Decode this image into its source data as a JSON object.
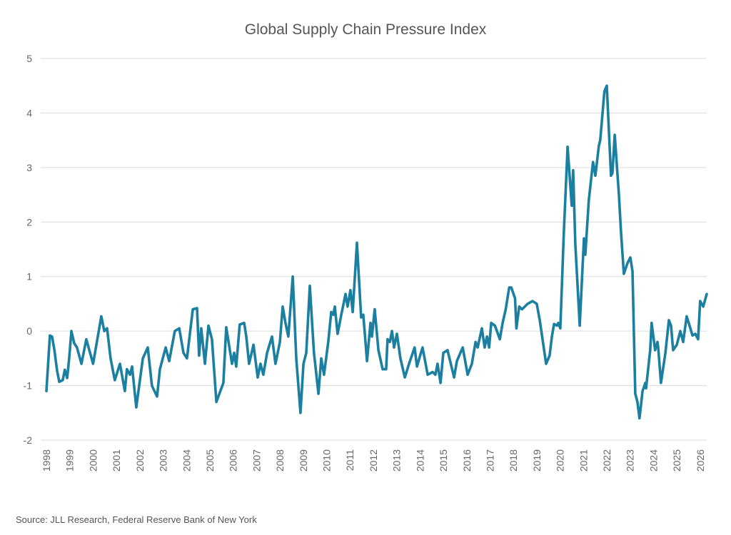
{
  "chart_data": {
    "type": "line",
    "title": "Global Supply Chain Pressure Index",
    "source": "Source: JLL Research, Federal Reserve Bank of New York",
    "xlabel": "",
    "ylabel": "",
    "xlim": [
      1998,
      2026.28
    ],
    "ylim": [
      -2,
      5
    ],
    "y_ticks": [
      "-2",
      "-1",
      "0",
      "1",
      "2",
      "3",
      "4",
      "5"
    ],
    "x_ticks": [
      "1998",
      "1999",
      "2000",
      "2001",
      "2002",
      "2003",
      "2004",
      "2005",
      "2006",
      "2007",
      "2008",
      "2009",
      "2010",
      "2011",
      "2012",
      "2013",
      "2014",
      "2015",
      "2016",
      "2017",
      "2018",
      "2019",
      "2020",
      "2021",
      "2022",
      "2023",
      "2024",
      "2025",
      "2026"
    ],
    "grid": true,
    "legend": "none",
    "color": "#1a7fa0",
    "series": [
      {
        "x": [
          1998.0,
          1998.15,
          1998.24,
          1998.34,
          1998.46,
          1998.55,
          1998.7,
          1998.79,
          1998.89,
          1998.98,
          1999.07,
          1999.19,
          1999.31,
          1999.5,
          1999.71,
          2000.0,
          2000.35,
          2000.48,
          2000.6,
          2000.75,
          2000.93,
          2001.15,
          2001.36,
          2001.45,
          2001.58,
          2001.67,
          2001.85,
          2002.13,
          2002.34,
          2002.52,
          2002.74,
          2002.86,
          2003.11,
          2003.26,
          2003.5,
          2003.69,
          2003.87,
          2004.02,
          2004.27,
          2004.45,
          2004.54,
          2004.63,
          2004.79,
          2004.94,
          2005.09,
          2005.28,
          2005.58,
          2005.7,
          2005.95,
          2006.04,
          2006.13,
          2006.28,
          2006.47,
          2006.56,
          2006.68,
          2006.87,
          2007.05,
          2007.17,
          2007.29,
          2007.45,
          2007.66,
          2007.81,
          2008.0,
          2008.12,
          2008.24,
          2008.36,
          2008.55,
          2008.7,
          2008.88,
          2009.01,
          2009.13,
          2009.28,
          2009.46,
          2009.65,
          2009.77,
          2009.89,
          2010.07,
          2010.2,
          2010.29,
          2010.35,
          2010.47,
          2010.63,
          2010.81,
          2010.9,
          2011.02,
          2011.12,
          2011.3,
          2011.48,
          2011.57,
          2011.73,
          2011.88,
          2011.94,
          2012.06,
          2012.22,
          2012.4,
          2012.55,
          2012.61,
          2012.71,
          2012.8,
          2012.89,
          2013.01,
          2013.16,
          2013.35,
          2013.53,
          2013.77,
          2013.87,
          2014.11,
          2014.33,
          2014.54,
          2014.66,
          2014.75,
          2014.88,
          2015.0,
          2015.18,
          2015.46,
          2015.58,
          2015.83,
          2016.04,
          2016.22,
          2016.38,
          2016.47,
          2016.65,
          2016.77,
          2016.87,
          2016.96,
          2017.05,
          2017.21,
          2017.42,
          2017.54,
          2017.67,
          2017.82,
          2017.91,
          2018.07,
          2018.13,
          2018.25,
          2018.37,
          2018.61,
          2018.82,
          2019.0,
          2019.13,
          2019.4,
          2019.55,
          2019.65,
          2019.74,
          2019.86,
          2019.92,
          2020.01,
          2020.16,
          2020.32,
          2020.5,
          2020.56,
          2020.65,
          2020.84,
          2021.02,
          2021.08,
          2021.23,
          2021.41,
          2021.51,
          2021.66,
          2021.72,
          2021.9,
          2022.0,
          2022.18,
          2022.24,
          2022.34,
          2022.52,
          2022.61,
          2022.73,
          2022.89,
          2023.01,
          2023.1,
          2023.22,
          2023.31,
          2023.4,
          2023.53,
          2023.65,
          2023.68,
          2023.86,
          2023.92,
          2024.07,
          2024.17,
          2024.2,
          2024.32,
          2024.51,
          2024.66,
          2024.75,
          2024.84,
          2025.0,
          2025.15,
          2025.27,
          2025.42,
          2025.58,
          2025.67,
          2025.79,
          2025.91,
          2026.0,
          2026.13,
          2026.28
        ],
        "values": [
          -1.1,
          -0.08,
          -0.1,
          -0.34,
          -0.73,
          -0.93,
          -0.9,
          -0.71,
          -0.86,
          -0.47,
          0.0,
          -0.22,
          -0.3,
          -0.6,
          -0.15,
          -0.6,
          0.27,
          0.0,
          0.05,
          -0.5,
          -0.9,
          -0.6,
          -1.1,
          -0.7,
          -0.8,
          -0.65,
          -1.4,
          -0.5,
          -0.3,
          -1.0,
          -1.2,
          -0.7,
          -0.3,
          -0.55,
          0.0,
          0.05,
          -0.4,
          -0.5,
          0.4,
          0.42,
          -0.45,
          0.05,
          -0.6,
          0.1,
          -0.15,
          -1.3,
          -0.95,
          0.07,
          -0.6,
          -0.4,
          -0.65,
          0.12,
          0.15,
          -0.1,
          -0.6,
          -0.25,
          -0.85,
          -0.6,
          -0.8,
          -0.4,
          -0.1,
          -0.6,
          -0.2,
          0.45,
          0.15,
          -0.1,
          1.0,
          -0.5,
          -1.5,
          -0.6,
          -0.4,
          0.83,
          -0.4,
          -1.15,
          -0.5,
          -0.8,
          -0.2,
          0.35,
          0.3,
          0.45,
          -0.05,
          0.3,
          0.68,
          0.45,
          0.75,
          0.35,
          1.62,
          0.25,
          0.3,
          -0.55,
          0.15,
          -0.1,
          0.4,
          -0.35,
          -0.7,
          -0.7,
          -0.15,
          -0.2,
          0.0,
          -0.3,
          -0.05,
          -0.5,
          -0.85,
          -0.6,
          -0.3,
          -0.65,
          -0.3,
          -0.8,
          -0.75,
          -0.8,
          -0.6,
          -0.95,
          -0.4,
          -0.35,
          -0.85,
          -0.55,
          -0.3,
          -0.8,
          -0.6,
          -0.2,
          -0.3,
          0.05,
          -0.3,
          -0.1,
          -0.3,
          0.15,
          0.1,
          -0.15,
          0.15,
          0.4,
          0.8,
          0.8,
          0.6,
          0.05,
          0.45,
          0.4,
          0.5,
          0.55,
          0.5,
          0.2,
          -0.6,
          -0.45,
          -0.1,
          0.13,
          0.1,
          0.15,
          0.05,
          1.8,
          3.38,
          2.3,
          2.95,
          1.6,
          0.1,
          1.7,
          1.4,
          2.4,
          3.1,
          2.85,
          3.4,
          3.5,
          4.4,
          4.5,
          2.85,
          2.9,
          3.6,
          2.5,
          1.8,
          1.05,
          1.25,
          1.35,
          1.1,
          -1.15,
          -1.3,
          -1.6,
          -1.1,
          -0.95,
          -1.05,
          -0.35,
          0.15,
          -0.35,
          -0.2,
          -0.3,
          -0.95,
          -0.4,
          0.2,
          0.1,
          -0.35,
          -0.25,
          0.0,
          -0.2,
          0.27,
          0.05,
          -0.08,
          -0.05,
          -0.15,
          0.55,
          0.45,
          0.68
        ]
      }
    ]
  }
}
